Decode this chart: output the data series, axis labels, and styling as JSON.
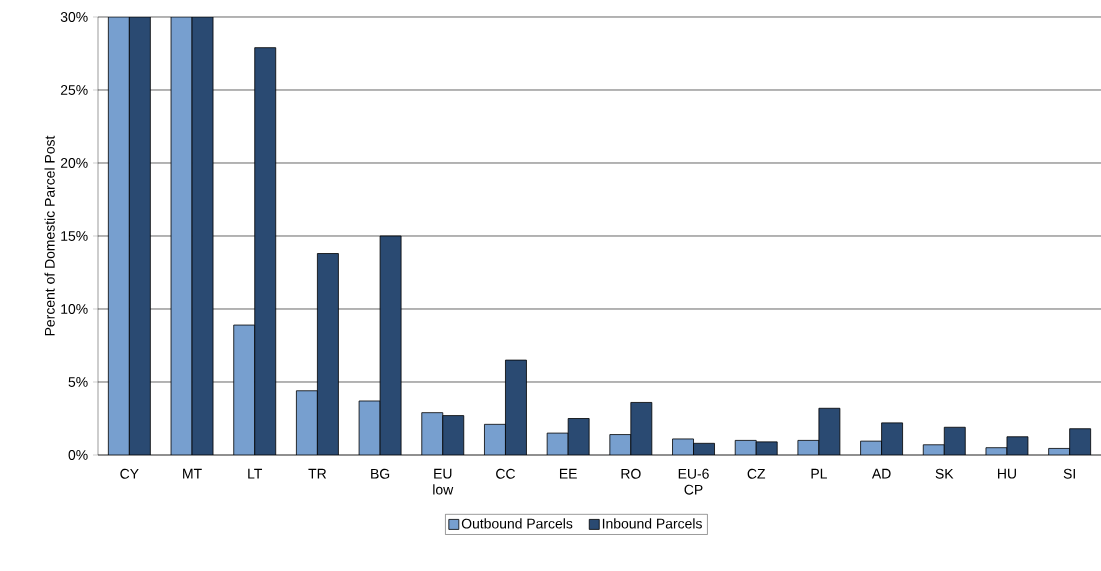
{
  "chart_data": {
    "type": "bar",
    "ylabel": "Percent of Domestic Parcel Post",
    "categories": [
      "CY",
      "MT",
      "LT",
      "TR",
      "BG",
      "EU low",
      "CC",
      "EE",
      "RO",
      "EU-6 CP",
      "CZ",
      "PL",
      "AD",
      "SK",
      "HU",
      "SI"
    ],
    "series": [
      {
        "name": "Outbound Parcels",
        "color": "#779fcf",
        "values": [
          30,
          30,
          8.9,
          4.4,
          3.7,
          2.9,
          2.1,
          1.5,
          1.4,
          1.1,
          1.0,
          1.0,
          0.95,
          0.7,
          0.5,
          0.45
        ]
      },
      {
        "name": "Inbound Parcels",
        "color": "#2a4a72",
        "values": [
          30,
          30,
          27.9,
          13.8,
          15.0,
          2.7,
          6.5,
          2.5,
          3.6,
          0.8,
          0.9,
          3.2,
          2.2,
          1.9,
          1.25,
          1.8
        ]
      }
    ],
    "ylim": [
      0,
      30
    ],
    "yticks": [
      {
        "value": 0,
        "label": "0%"
      },
      {
        "value": 5,
        "label": "5%"
      },
      {
        "value": 10,
        "label": "10%"
      },
      {
        "value": 15,
        "label": "15%"
      },
      {
        "value": 20,
        "label": "20%"
      },
      {
        "value": 25,
        "label": "25%"
      },
      {
        "value": 30,
        "label": "30%"
      }
    ],
    "grid": "y",
    "legend": "bottom"
  }
}
